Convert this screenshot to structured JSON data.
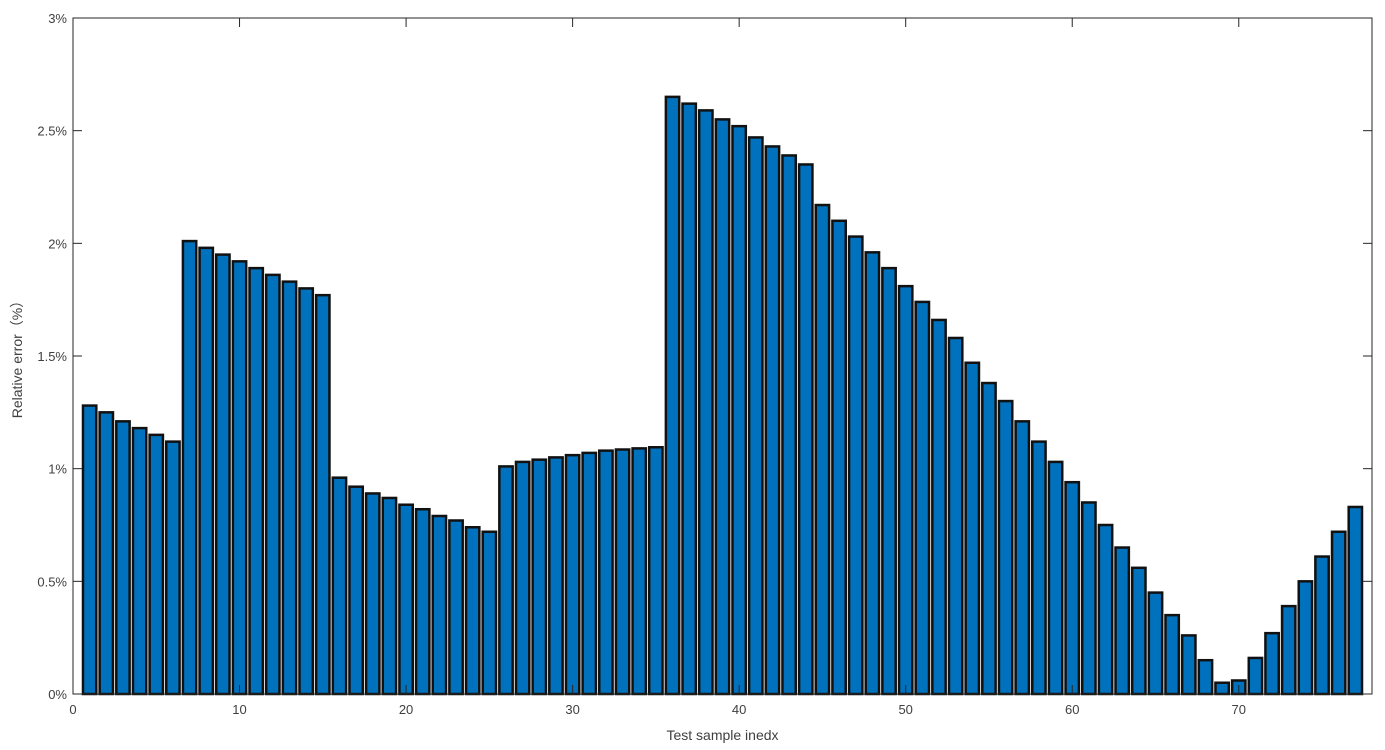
{
  "chart_data": {
    "type": "bar",
    "xlabel": "Test sample inedx",
    "ylabel": "Relative error（%）",
    "xlim": [
      0,
      78
    ],
    "ylim": [
      0,
      3
    ],
    "xticks": [
      0,
      10,
      20,
      30,
      40,
      50,
      60,
      70
    ],
    "xtick_labels": [
      "0",
      "10",
      "20",
      "30",
      "40",
      "50",
      "60",
      "70"
    ],
    "yticks": [
      0,
      0.5,
      1,
      1.5,
      2,
      2.5,
      3
    ],
    "ytick_labels": [
      "0%",
      "0.5%",
      "1%",
      "1.5%",
      "2%",
      "2.5%",
      "3%"
    ],
    "grid": false,
    "bar_color": "#0072BD",
    "edge_color": "#111111",
    "x": [
      1,
      2,
      3,
      4,
      5,
      6,
      7,
      8,
      9,
      10,
      11,
      12,
      13,
      14,
      15,
      16,
      17,
      18,
      19,
      20,
      21,
      22,
      23,
      24,
      25,
      26,
      27,
      28,
      29,
      30,
      31,
      32,
      33,
      34,
      35,
      36,
      37,
      38,
      39,
      40,
      41,
      42,
      43,
      44,
      45,
      46,
      47,
      48,
      49,
      50,
      51,
      52,
      53,
      54,
      55,
      56,
      57,
      58,
      59,
      60,
      61,
      62,
      63,
      64,
      65,
      66,
      67,
      68,
      69,
      70,
      71,
      72,
      73,
      74,
      75,
      76,
      77
    ],
    "values": [
      1.28,
      1.25,
      1.21,
      1.18,
      1.15,
      1.12,
      2.01,
      1.98,
      1.95,
      1.92,
      1.89,
      1.86,
      1.83,
      1.8,
      1.77,
      0.96,
      0.92,
      0.89,
      0.87,
      0.84,
      0.82,
      0.79,
      0.77,
      0.74,
      0.72,
      1.01,
      1.03,
      1.04,
      1.05,
      1.06,
      1.07,
      1.08,
      1.085,
      1.09,
      1.095,
      2.65,
      2.62,
      2.59,
      2.55,
      2.52,
      2.47,
      2.43,
      2.39,
      2.35,
      2.17,
      2.1,
      2.03,
      1.96,
      1.89,
      1.81,
      1.74,
      1.66,
      1.58,
      1.47,
      1.38,
      1.3,
      1.21,
      1.12,
      1.03,
      0.94,
      0.85,
      0.75,
      0.65,
      0.56,
      0.45,
      0.35,
      0.26,
      0.15,
      0.05,
      0.06,
      0.16,
      0.27,
      0.39,
      0.5,
      0.61,
      0.72,
      0.83
    ]
  }
}
